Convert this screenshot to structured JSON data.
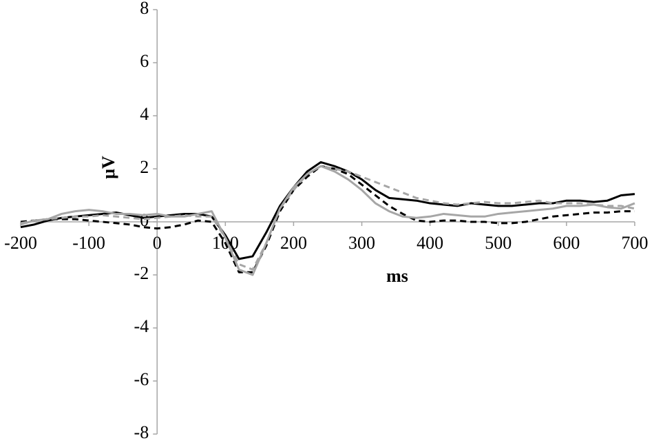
{
  "chart_data": {
    "type": "line",
    "x_label": "ms",
    "y_label": "μV",
    "x": [
      -200,
      -180,
      -160,
      -140,
      -120,
      -100,
      -80,
      -60,
      -40,
      -20,
      0,
      20,
      40,
      60,
      80,
      100,
      120,
      140,
      160,
      180,
      200,
      220,
      240,
      260,
      280,
      300,
      320,
      340,
      360,
      380,
      400,
      420,
      440,
      460,
      480,
      500,
      520,
      540,
      560,
      580,
      600,
      620,
      640,
      660,
      680,
      700
    ],
    "series": [
      {
        "color": "#000000",
        "dash": false,
        "values": [
          -0.2,
          -0.1,
          0.05,
          0.15,
          0.2,
          0.25,
          0.3,
          0.35,
          0.25,
          0.15,
          0.2,
          0.25,
          0.3,
          0.3,
          0.2,
          -0.5,
          -1.4,
          -1.3,
          -0.4,
          0.6,
          1.3,
          1.9,
          2.25,
          2.1,
          1.9,
          1.6,
          1.2,
          0.9,
          0.85,
          0.8,
          0.7,
          0.65,
          0.6,
          0.7,
          0.65,
          0.6,
          0.6,
          0.65,
          0.7,
          0.7,
          0.8,
          0.8,
          0.75,
          0.8,
          1.0,
          1.05
        ]
      },
      {
        "color": "#000000",
        "dash": true,
        "values": [
          0,
          0.05,
          0.1,
          0.1,
          0.1,
          0.05,
          0,
          -0.05,
          -0.1,
          -0.2,
          -0.25,
          -0.2,
          -0.1,
          0.05,
          0,
          -0.8,
          -1.9,
          -1.9,
          -0.9,
          0.4,
          1.2,
          1.7,
          2.1,
          2.0,
          1.8,
          1.4,
          1.0,
          0.6,
          0.3,
          0.05,
          0,
          0.05,
          0.05,
          0,
          0,
          -0.05,
          -0.05,
          0,
          0.1,
          0.2,
          0.25,
          0.3,
          0.35,
          0.35,
          0.4,
          0.4
        ]
      },
      {
        "color": "#a6a6a6",
        "dash": false,
        "values": [
          -0.1,
          0.05,
          0.1,
          0.3,
          0.4,
          0.45,
          0.4,
          0.3,
          0.3,
          0.25,
          0.3,
          0.2,
          0.2,
          0.3,
          0.4,
          -0.6,
          -1.8,
          -2.0,
          -0.8,
          0.5,
          1.3,
          1.8,
          2.1,
          1.9,
          1.6,
          1.2,
          0.7,
          0.4,
          0.2,
          0.15,
          0.2,
          0.3,
          0.25,
          0.2,
          0.2,
          0.3,
          0.35,
          0.4,
          0.45,
          0.5,
          0.6,
          0.6,
          0.65,
          0.55,
          0.5,
          0.7
        ]
      },
      {
        "color": "#a6a6a6",
        "dash": true,
        "values": [
          -0.05,
          0.05,
          0.1,
          0.15,
          0.2,
          0.2,
          0.25,
          0.2,
          0.15,
          0.1,
          0.15,
          0.2,
          0.25,
          0.2,
          0.2,
          -0.6,
          -1.6,
          -1.8,
          -0.8,
          0.5,
          1.2,
          1.8,
          2.1,
          2.0,
          1.9,
          1.7,
          1.5,
          1.3,
          1.1,
          0.9,
          0.8,
          0.7,
          0.65,
          0.7,
          0.75,
          0.7,
          0.7,
          0.75,
          0.8,
          0.7,
          0.7,
          0.7,
          0.65,
          0.6,
          0.6,
          0.5
        ]
      }
    ],
    "xlim": [
      -200,
      700
    ],
    "ylim": [
      -8,
      8
    ],
    "xticks": [
      -200,
      -100,
      0,
      100,
      200,
      300,
      400,
      500,
      600,
      700
    ],
    "yticks": [
      -8,
      -6,
      -4,
      -2,
      0,
      2,
      4,
      6,
      8
    ]
  }
}
